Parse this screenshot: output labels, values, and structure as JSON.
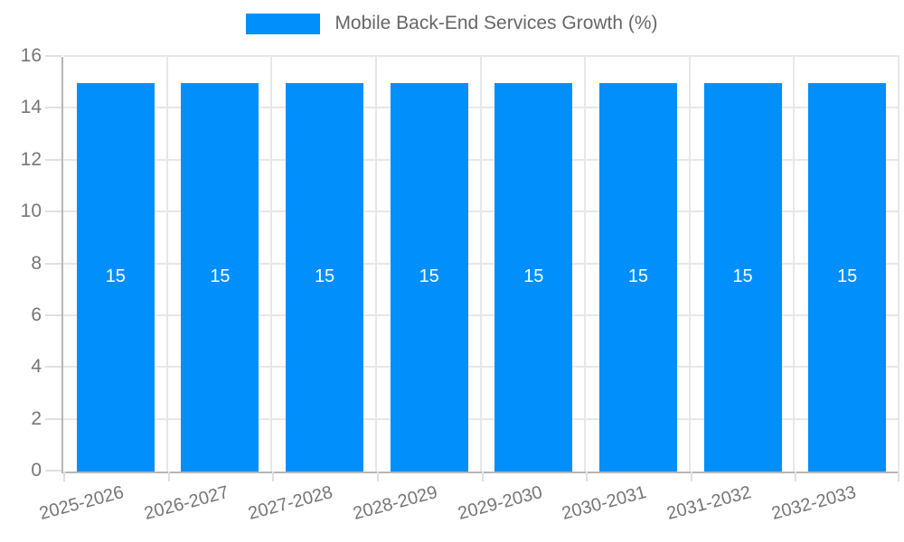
{
  "legend": {
    "label": "Mobile Back-End Services Growth (%)",
    "swatch_color": "#008FFB"
  },
  "chart_data": {
    "type": "bar",
    "title": "Mobile Back-End Services Growth (%)",
    "series": [
      {
        "name": "Mobile Back-End Services Growth (%)",
        "values": [
          15,
          15,
          15,
          15,
          15,
          15,
          15,
          15
        ]
      }
    ],
    "categories": [
      "2025-2026",
      "2026-2027",
      "2027-2028",
      "2028-2029",
      "2029-2030",
      "2030-2031",
      "2031-2032",
      "2032-2033"
    ],
    "bar_labels": [
      "15",
      "15",
      "15",
      "15",
      "15",
      "15",
      "15",
      "15"
    ],
    "xlabel": "",
    "ylabel": "",
    "ylim": [
      0,
      16
    ],
    "yticks": [
      0,
      2,
      4,
      6,
      8,
      10,
      12,
      14,
      16
    ],
    "grid": true,
    "legend_position": "top",
    "x_label_rotation_deg": -15,
    "colors": {
      "bar": "#008FFB",
      "grid": "#e7e7e7",
      "axis_line": "#b6b6b6",
      "tick_text": "#757575",
      "legend_text": "#666666",
      "bar_label_text": "#ffffff"
    }
  }
}
